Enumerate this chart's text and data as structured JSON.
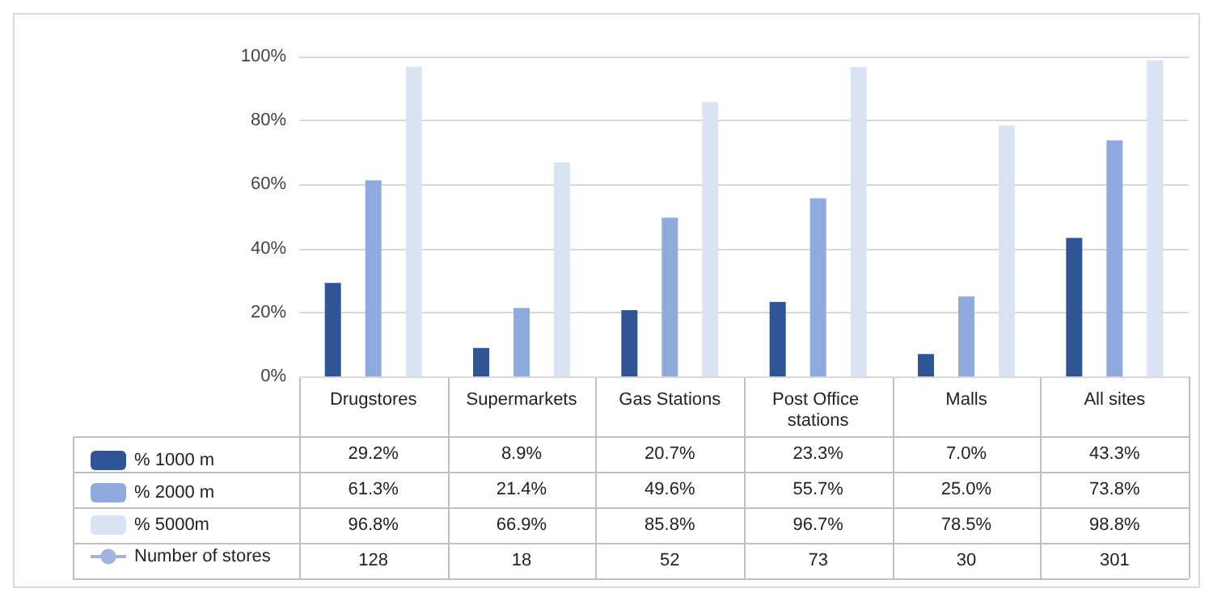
{
  "chart_data": {
    "type": "bar",
    "categories": [
      "Drugstores",
      "Supermarkets",
      "Gas Stations",
      "Post Office stations",
      "Malls",
      "All sites"
    ],
    "series": [
      {
        "name": "% 1000 m",
        "color": "#2f5597",
        "values": [
          29.2,
          8.9,
          20.7,
          23.3,
          7.0,
          43.3
        ],
        "value_labels": [
          "29.2%",
          "8.9%",
          "20.7%",
          "23.3%",
          "7.0%",
          "43.3%"
        ]
      },
      {
        "name": "% 2000 m",
        "color": "#8faadc",
        "values": [
          61.3,
          21.4,
          49.6,
          55.7,
          25.0,
          73.8
        ],
        "value_labels": [
          "61.3%",
          "21.4%",
          "49.6%",
          "55.7%",
          "25.0%",
          "73.8%"
        ]
      },
      {
        "name": "% 5000m",
        "color": "#dae3f3",
        "values": [
          96.8,
          66.9,
          85.8,
          96.7,
          78.5,
          98.8
        ],
        "value_labels": [
          "96.8%",
          "66.9%",
          "85.8%",
          "96.7%",
          "78.5%",
          "98.8%"
        ]
      },
      {
        "name": "Number of stores",
        "type": "line",
        "marker": "circle",
        "color": "#9fb5dd",
        "values": [
          null,
          null,
          null,
          null,
          null,
          null
        ],
        "value_labels": [
          "128",
          "18",
          "52",
          "73",
          "30",
          "301"
        ]
      }
    ],
    "ylim": [
      0,
      100
    ],
    "yticks": [
      {
        "value": 0,
        "label": "0%"
      },
      {
        "value": 20,
        "label": "20%"
      },
      {
        "value": 40,
        "label": "40%"
      },
      {
        "value": 60,
        "label": "60%"
      },
      {
        "value": 80,
        "label": "80%"
      },
      {
        "value": 100,
        "label": "100%"
      }
    ],
    "grid": "y",
    "legend": "bottom left"
  }
}
